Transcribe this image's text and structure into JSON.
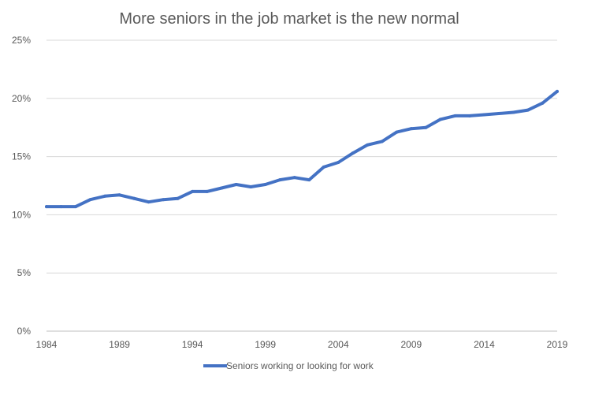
{
  "chart_data": {
    "type": "line",
    "title": "More seniors in the job market is the new normal",
    "xlabel": "",
    "ylabel": "",
    "xlim": [
      1984,
      2019
    ],
    "ylim": [
      0,
      25
    ],
    "grid": "horizontal",
    "legend_position": "bottom",
    "color": "#4472C4",
    "x_ticks": [
      "1984",
      "1989",
      "1994",
      "1999",
      "2004",
      "2009",
      "2014",
      "2019"
    ],
    "y_ticks": [
      "0%",
      "5%",
      "10%",
      "15%",
      "20%",
      "25%"
    ],
    "y_tick_values": [
      0,
      5,
      10,
      15,
      20,
      25
    ],
    "series": [
      {
        "name": "Seniors working or looking for work",
        "x": [
          1984,
          1985,
          1986,
          1987,
          1988,
          1989,
          1990,
          1991,
          1992,
          1993,
          1994,
          1995,
          1996,
          1997,
          1998,
          1999,
          2000,
          2001,
          2002,
          2003,
          2004,
          2005,
          2006,
          2007,
          2008,
          2009,
          2010,
          2011,
          2012,
          2013,
          2014,
          2015,
          2016,
          2017,
          2018,
          2019
        ],
        "values": [
          10.7,
          10.7,
          10.7,
          11.3,
          11.6,
          11.7,
          11.4,
          11.1,
          11.3,
          11.4,
          12.0,
          12.0,
          12.3,
          12.6,
          12.4,
          12.6,
          13.0,
          13.2,
          13.0,
          14.1,
          14.5,
          15.3,
          16.0,
          16.3,
          17.1,
          17.4,
          17.5,
          18.2,
          18.5,
          18.5,
          18.6,
          18.7,
          18.8,
          19.0,
          19.6,
          20.6
        ]
      }
    ]
  }
}
